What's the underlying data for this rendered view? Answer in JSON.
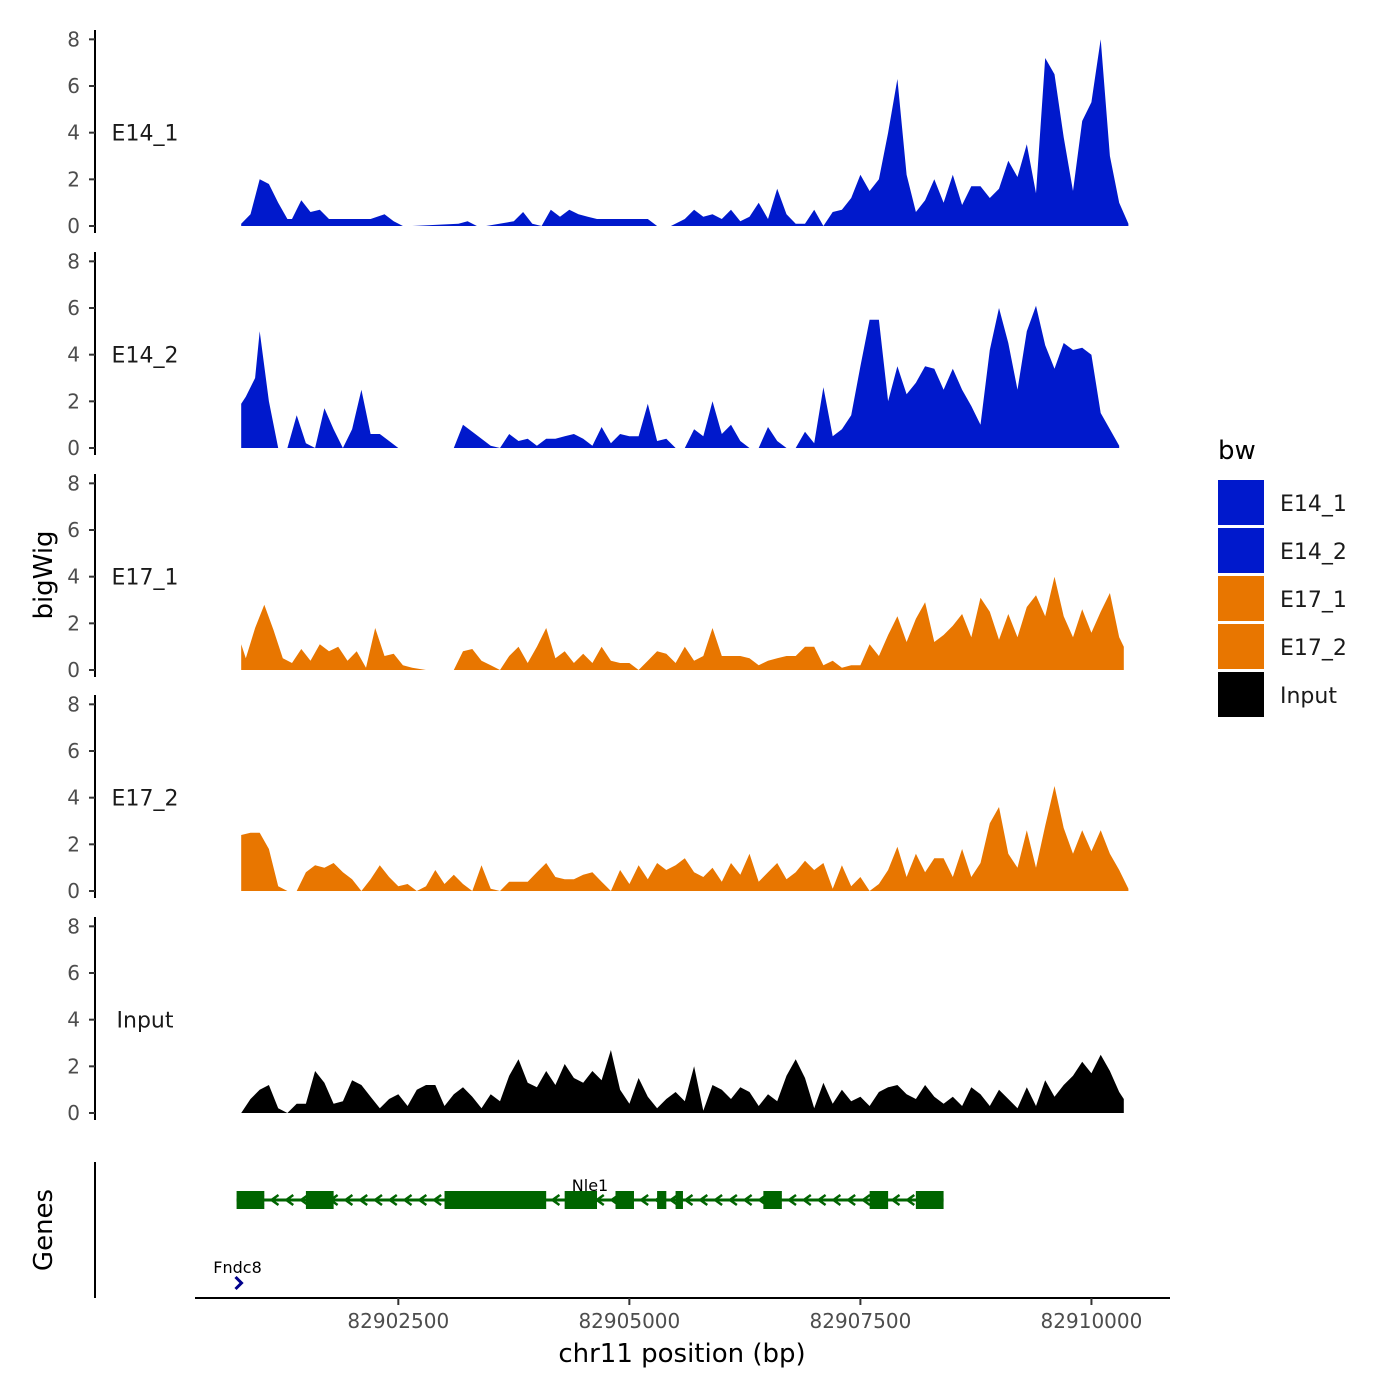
{
  "chart_data": {
    "type": "area",
    "title": "",
    "xlabel": "chr11 position (bp)",
    "ylabel": "bigWig",
    "genes_label": "Genes",
    "xlim": [
      82900300,
      82910850
    ],
    "ylim": [
      0,
      8.4
    ],
    "x_ticks": [
      {
        "value": 82902500,
        "label": "82902500"
      },
      {
        "value": 82905000,
        "label": "82905000"
      },
      {
        "value": 82907500,
        "label": "82907500"
      },
      {
        "value": 82910000,
        "label": "82910000"
      }
    ],
    "y_ticks": [
      {
        "value": 0,
        "label": "0"
      },
      {
        "value": 2,
        "label": "2"
      },
      {
        "value": 4,
        "label": "4"
      },
      {
        "value": 6,
        "label": "6"
      },
      {
        "value": 8,
        "label": "8"
      }
    ],
    "legend": {
      "title": "bw",
      "position": "right",
      "items": [
        {
          "label": "E14_1",
          "color": "#0019CC"
        },
        {
          "label": "E14_2",
          "color": "#0019CC"
        },
        {
          "label": "E17_1",
          "color": "#E87600"
        },
        {
          "label": "E17_2",
          "color": "#E87600"
        },
        {
          "label": "Input",
          "color": "#000000"
        }
      ]
    },
    "series": [
      {
        "name": "E14_1",
        "color": "#0019CC",
        "x": [
          82900800,
          82900900,
          82901000,
          82901100,
          82901200,
          82901300,
          82901350,
          82901450,
          82901550,
          82901650,
          82901750,
          82901850,
          82902000,
          82902200,
          82902350,
          82902450,
          82902550,
          82902650,
          82903150,
          82903250,
          82903350,
          82903450,
          82903750,
          82903850,
          82903950,
          82904050,
          82904150,
          82904250,
          82904350,
          82904450,
          82904550,
          82904650,
          82904750,
          82904850,
          82905000,
          82905200,
          82905300,
          82905450,
          82905600,
          82905700,
          82905800,
          82905900,
          82906000,
          82906100,
          82906200,
          82906300,
          82906400,
          82906500,
          82906600,
          82906700,
          82906800,
          82906900,
          82907000,
          82907100,
          82907200,
          82907300,
          82907400,
          82907500,
          82907600,
          82907700,
          82907800,
          82907900,
          82908000,
          82908100,
          82908200,
          82908300,
          82908400,
          82908500,
          82908600,
          82908700,
          82908800,
          82908900,
          82909000,
          82909100,
          82909200,
          82909300,
          82909400,
          82909500,
          82909600,
          82909700,
          82909800,
          82909900,
          82910000,
          82910100,
          82910200,
          82910300,
          82910400
        ],
        "y": [
          0.1,
          0.5,
          2.0,
          1.8,
          1.0,
          0.3,
          0.3,
          1.1,
          0.6,
          0.7,
          0.3,
          0.3,
          0.3,
          0.3,
          0.5,
          0.2,
          0.0,
          0.0,
          0.1,
          0.2,
          0.0,
          0.0,
          0.2,
          0.6,
          0.1,
          0.0,
          0.7,
          0.4,
          0.7,
          0.5,
          0.4,
          0.3,
          0.3,
          0.3,
          0.3,
          0.3,
          0.0,
          0.0,
          0.3,
          0.7,
          0.4,
          0.5,
          0.3,
          0.7,
          0.2,
          0.4,
          1.0,
          0.3,
          1.6,
          0.5,
          0.1,
          0.1,
          0.7,
          0.0,
          0.6,
          0.7,
          1.2,
          2.2,
          1.5,
          2.0,
          4.0,
          6.3,
          2.2,
          0.6,
          1.1,
          2.0,
          1.0,
          2.2,
          0.9,
          1.7,
          1.7,
          1.2,
          1.6,
          2.8,
          2.1,
          3.5,
          1.4,
          7.2,
          6.5,
          3.8,
          1.5,
          4.5,
          5.3,
          8.0,
          3.0,
          1.0,
          0.1
        ]
      },
      {
        "name": "E14_2",
        "color": "#0019CC",
        "x": [
          82900800,
          82900850,
          82900950,
          82901000,
          82901100,
          82901200,
          82901300,
          82901400,
          82901500,
          82901600,
          82901700,
          82901800,
          82901900,
          82902000,
          82902100,
          82902200,
          82902300,
          82902400,
          82902500,
          82902600,
          82902900,
          82903000,
          82903100,
          82903200,
          82903300,
          82903400,
          82903500,
          82903600,
          82903700,
          82903800,
          82903900,
          82904000,
          82904100,
          82904200,
          82904300,
          82904400,
          82904500,
          82904600,
          82904700,
          82904800,
          82904900,
          82905000,
          82905100,
          82905200,
          82905300,
          82905400,
          82905500,
          82905600,
          82905700,
          82905800,
          82905900,
          82906000,
          82906100,
          82906200,
          82906300,
          82906400,
          82906500,
          82906600,
          82906700,
          82906800,
          82906900,
          82907000,
          82907100,
          82907200,
          82907300,
          82907400,
          82907500,
          82907600,
          82907700,
          82907800,
          82907900,
          82908000,
          82908100,
          82908200,
          82908300,
          82908400,
          82908500,
          82908600,
          82908700,
          82908800,
          82908900,
          82909000,
          82909100,
          82909200,
          82909300,
          82909400,
          82909500,
          82909600,
          82909700,
          82909800,
          82909900,
          82910000,
          82910100,
          82910200,
          82910300
        ],
        "y": [
          1.9,
          2.2,
          3.0,
          5.0,
          2.0,
          0.0,
          0.0,
          1.4,
          0.2,
          0.0,
          1.7,
          0.8,
          0.0,
          0.8,
          2.5,
          0.6,
          0.6,
          0.3,
          0.0,
          0.0,
          0.0,
          0.0,
          0.0,
          1.0,
          0.7,
          0.4,
          0.1,
          0.0,
          0.6,
          0.3,
          0.4,
          0.1,
          0.4,
          0.4,
          0.5,
          0.6,
          0.4,
          0.1,
          0.9,
          0.2,
          0.6,
          0.5,
          0.5,
          1.9,
          0.3,
          0.4,
          0.0,
          0.0,
          0.8,
          0.5,
          2.0,
          0.6,
          1.0,
          0.3,
          0.0,
          0.0,
          0.9,
          0.3,
          0.0,
          0.0,
          0.7,
          0.2,
          2.6,
          0.5,
          0.8,
          1.4,
          3.5,
          5.5,
          5.5,
          2.0,
          3.5,
          2.3,
          2.8,
          3.5,
          3.4,
          2.5,
          3.4,
          2.5,
          1.8,
          1.0,
          4.2,
          6.0,
          4.5,
          2.5,
          5.0,
          6.1,
          4.4,
          3.4,
          4.5,
          4.2,
          4.3,
          4.0,
          1.5,
          0.8,
          0.1
        ]
      },
      {
        "name": "E17_1",
        "color": "#E87600",
        "x": [
          82900800,
          82900850,
          82900950,
          82901050,
          82901150,
          82901250,
          82901350,
          82901450,
          82901550,
          82901650,
          82901750,
          82901850,
          82901950,
          82902050,
          82902150,
          82902250,
          82902350,
          82902450,
          82902550,
          82902650,
          82902800,
          82902900,
          82903000,
          82903100,
          82903200,
          82903300,
          82903400,
          82903500,
          82903600,
          82903700,
          82903800,
          82903900,
          82904000,
          82904100,
          82904200,
          82904300,
          82904400,
          82904500,
          82904600,
          82904700,
          82904800,
          82904900,
          82905000,
          82905100,
          82905200,
          82905300,
          82905400,
          82905500,
          82905600,
          82905700,
          82905800,
          82905900,
          82906000,
          82906100,
          82906200,
          82906300,
          82906400,
          82906500,
          82906600,
          82906700,
          82906800,
          82906900,
          82907000,
          82907100,
          82907200,
          82907300,
          82907400,
          82907500,
          82907600,
          82907700,
          82907800,
          82907900,
          82908000,
          82908100,
          82908200,
          82908300,
          82908400,
          82908500,
          82908600,
          82908700,
          82908800,
          82908900,
          82909000,
          82909100,
          82909200,
          82909300,
          82909400,
          82909500,
          82909600,
          82909700,
          82909800,
          82909900,
          82910000,
          82910100,
          82910200,
          82910300,
          82910350
        ],
        "y": [
          1.1,
          0.5,
          1.8,
          2.8,
          1.7,
          0.5,
          0.3,
          0.9,
          0.4,
          1.1,
          0.8,
          1.0,
          0.4,
          0.8,
          0.1,
          1.8,
          0.6,
          0.7,
          0.2,
          0.1,
          0.0,
          0.0,
          0.0,
          0.0,
          0.8,
          0.9,
          0.4,
          0.2,
          0.0,
          0.6,
          1.0,
          0.3,
          1.0,
          1.8,
          0.5,
          0.8,
          0.3,
          0.7,
          0.3,
          1.0,
          0.4,
          0.3,
          0.3,
          0.0,
          0.4,
          0.8,
          0.7,
          0.3,
          1.0,
          0.4,
          0.6,
          1.8,
          0.6,
          0.6,
          0.6,
          0.5,
          0.2,
          0.4,
          0.5,
          0.6,
          0.6,
          1.0,
          1.0,
          0.2,
          0.4,
          0.1,
          0.2,
          0.2,
          1.1,
          0.6,
          1.5,
          2.3,
          1.2,
          2.2,
          2.9,
          1.2,
          1.5,
          1.9,
          2.4,
          1.4,
          3.1,
          2.5,
          1.3,
          2.4,
          1.4,
          2.7,
          3.2,
          2.3,
          4.0,
          2.3,
          1.4,
          2.6,
          1.6,
          2.5,
          3.3,
          1.4,
          1.0
        ]
      },
      {
        "name": "E17_2",
        "color": "#E87600",
        "x": [
          82900800,
          82900900,
          82901000,
          82901100,
          82901200,
          82901300,
          82901400,
          82901500,
          82901600,
          82901700,
          82901800,
          82901900,
          82902000,
          82902100,
          82902200,
          82902300,
          82902400,
          82902500,
          82902600,
          82902700,
          82902800,
          82902900,
          82903000,
          82903100,
          82903200,
          82903300,
          82903400,
          82903500,
          82903600,
          82903700,
          82903800,
          82903900,
          82904000,
          82904100,
          82904200,
          82904300,
          82904400,
          82904500,
          82904600,
          82904700,
          82904800,
          82904900,
          82905000,
          82905100,
          82905200,
          82905300,
          82905400,
          82905500,
          82905600,
          82905700,
          82905800,
          82905900,
          82906000,
          82906100,
          82906200,
          82906300,
          82906400,
          82906500,
          82906600,
          82906700,
          82906800,
          82906900,
          82907000,
          82907100,
          82907200,
          82907300,
          82907400,
          82907500,
          82907600,
          82907700,
          82907800,
          82907900,
          82908000,
          82908100,
          82908200,
          82908300,
          82908400,
          82908500,
          82908600,
          82908700,
          82908800,
          82908900,
          82909000,
          82909100,
          82909200,
          82909300,
          82909400,
          82909500,
          82909600,
          82909700,
          82909800,
          82909900,
          82910000,
          82910100,
          82910200,
          82910300,
          82910400
        ],
        "y": [
          2.4,
          2.5,
          2.5,
          1.8,
          0.2,
          0.0,
          0.0,
          0.8,
          1.1,
          1.0,
          1.2,
          0.8,
          0.5,
          0.0,
          0.5,
          1.1,
          0.6,
          0.2,
          0.3,
          0.0,
          0.2,
          0.9,
          0.3,
          0.7,
          0.3,
          0.0,
          1.1,
          0.1,
          0.0,
          0.4,
          0.4,
          0.4,
          0.8,
          1.2,
          0.6,
          0.5,
          0.5,
          0.7,
          0.8,
          0.4,
          0.0,
          0.9,
          0.3,
          1.1,
          0.5,
          1.2,
          0.9,
          1.1,
          1.4,
          0.8,
          0.6,
          1.0,
          0.4,
          1.2,
          0.7,
          1.6,
          0.4,
          0.8,
          1.2,
          0.5,
          0.8,
          1.3,
          0.9,
          1.2,
          0.1,
          1.1,
          0.2,
          0.6,
          0.0,
          0.3,
          0.9,
          1.9,
          0.6,
          1.6,
          0.8,
          1.4,
          1.4,
          0.6,
          1.8,
          0.6,
          1.2,
          2.9,
          3.6,
          1.6,
          1.0,
          2.6,
          1.0,
          2.8,
          4.5,
          2.7,
          1.6,
          2.6,
          1.7,
          2.6,
          1.6,
          0.9,
          0.1
        ]
      },
      {
        "name": "Input",
        "color": "#000000",
        "x": [
          82900800,
          82900900,
          82901000,
          82901100,
          82901200,
          82901300,
          82901400,
          82901500,
          82901600,
          82901700,
          82901800,
          82901900,
          82902000,
          82902100,
          82902200,
          82902300,
          82902400,
          82902500,
          82902600,
          82902700,
          82902800,
          82902900,
          82903000,
          82903100,
          82903200,
          82903300,
          82903400,
          82903500,
          82903600,
          82903700,
          82903800,
          82903900,
          82904000,
          82904100,
          82904200,
          82904300,
          82904400,
          82904500,
          82904600,
          82904700,
          82904800,
          82904900,
          82905000,
          82905100,
          82905200,
          82905300,
          82905400,
          82905500,
          82905600,
          82905700,
          82905800,
          82905900,
          82906000,
          82906100,
          82906200,
          82906300,
          82906400,
          82906500,
          82906600,
          82906700,
          82906800,
          82906900,
          82907000,
          82907100,
          82907200,
          82907300,
          82907400,
          82907500,
          82907600,
          82907700,
          82907800,
          82907900,
          82908000,
          82908100,
          82908200,
          82908300,
          82908400,
          82908500,
          82908600,
          82908700,
          82908800,
          82908900,
          82909000,
          82909100,
          82909200,
          82909300,
          82909400,
          82909500,
          82909600,
          82909700,
          82909800,
          82909900,
          82910000,
          82910100,
          82910200,
          82910300,
          82910350
        ],
        "y": [
          0.0,
          0.6,
          1.0,
          1.2,
          0.2,
          0.0,
          0.4,
          0.4,
          1.8,
          1.3,
          0.4,
          0.5,
          1.4,
          1.2,
          0.7,
          0.2,
          0.6,
          0.8,
          0.3,
          1.0,
          1.2,
          1.2,
          0.3,
          0.8,
          1.1,
          0.7,
          0.2,
          0.8,
          0.5,
          1.6,
          2.3,
          1.3,
          1.1,
          1.8,
          1.2,
          2.1,
          1.5,
          1.3,
          1.8,
          1.4,
          2.7,
          1.0,
          0.4,
          1.5,
          0.7,
          0.2,
          0.6,
          0.9,
          0.5,
          2.0,
          0.1,
          1.2,
          1.0,
          0.6,
          1.1,
          0.9,
          0.3,
          0.8,
          0.5,
          1.6,
          2.3,
          1.5,
          0.2,
          1.3,
          0.4,
          1.0,
          0.5,
          0.7,
          0.3,
          0.9,
          1.1,
          1.2,
          0.8,
          0.6,
          1.2,
          0.7,
          0.4,
          0.7,
          0.3,
          1.1,
          0.8,
          0.3,
          1.0,
          0.6,
          0.2,
          1.1,
          0.3,
          1.4,
          0.7,
          1.2,
          1.6,
          2.2,
          1.7,
          2.5,
          1.8,
          0.9,
          0.6
        ]
      }
    ],
    "genes": [
      {
        "name": "Nle1",
        "strand": "-",
        "color": "#006400",
        "start": 82900750,
        "end": 82908400,
        "exons": [
          [
            82900750,
            82901050
          ],
          [
            82901500,
            82901800
          ],
          [
            82903000,
            82904100
          ],
          [
            82904300,
            82904650
          ],
          [
            82904850,
            82905050
          ],
          [
            82905300,
            82905400
          ],
          [
            82905500,
            82905580
          ],
          [
            82906450,
            82906650
          ],
          [
            82907600,
            82907800
          ],
          [
            82908100,
            82908400
          ]
        ]
      },
      {
        "name": "Fndc8",
        "strand": "+",
        "color": "#00008B",
        "start": 82900760,
        "end": 82900800,
        "exons": []
      }
    ]
  }
}
